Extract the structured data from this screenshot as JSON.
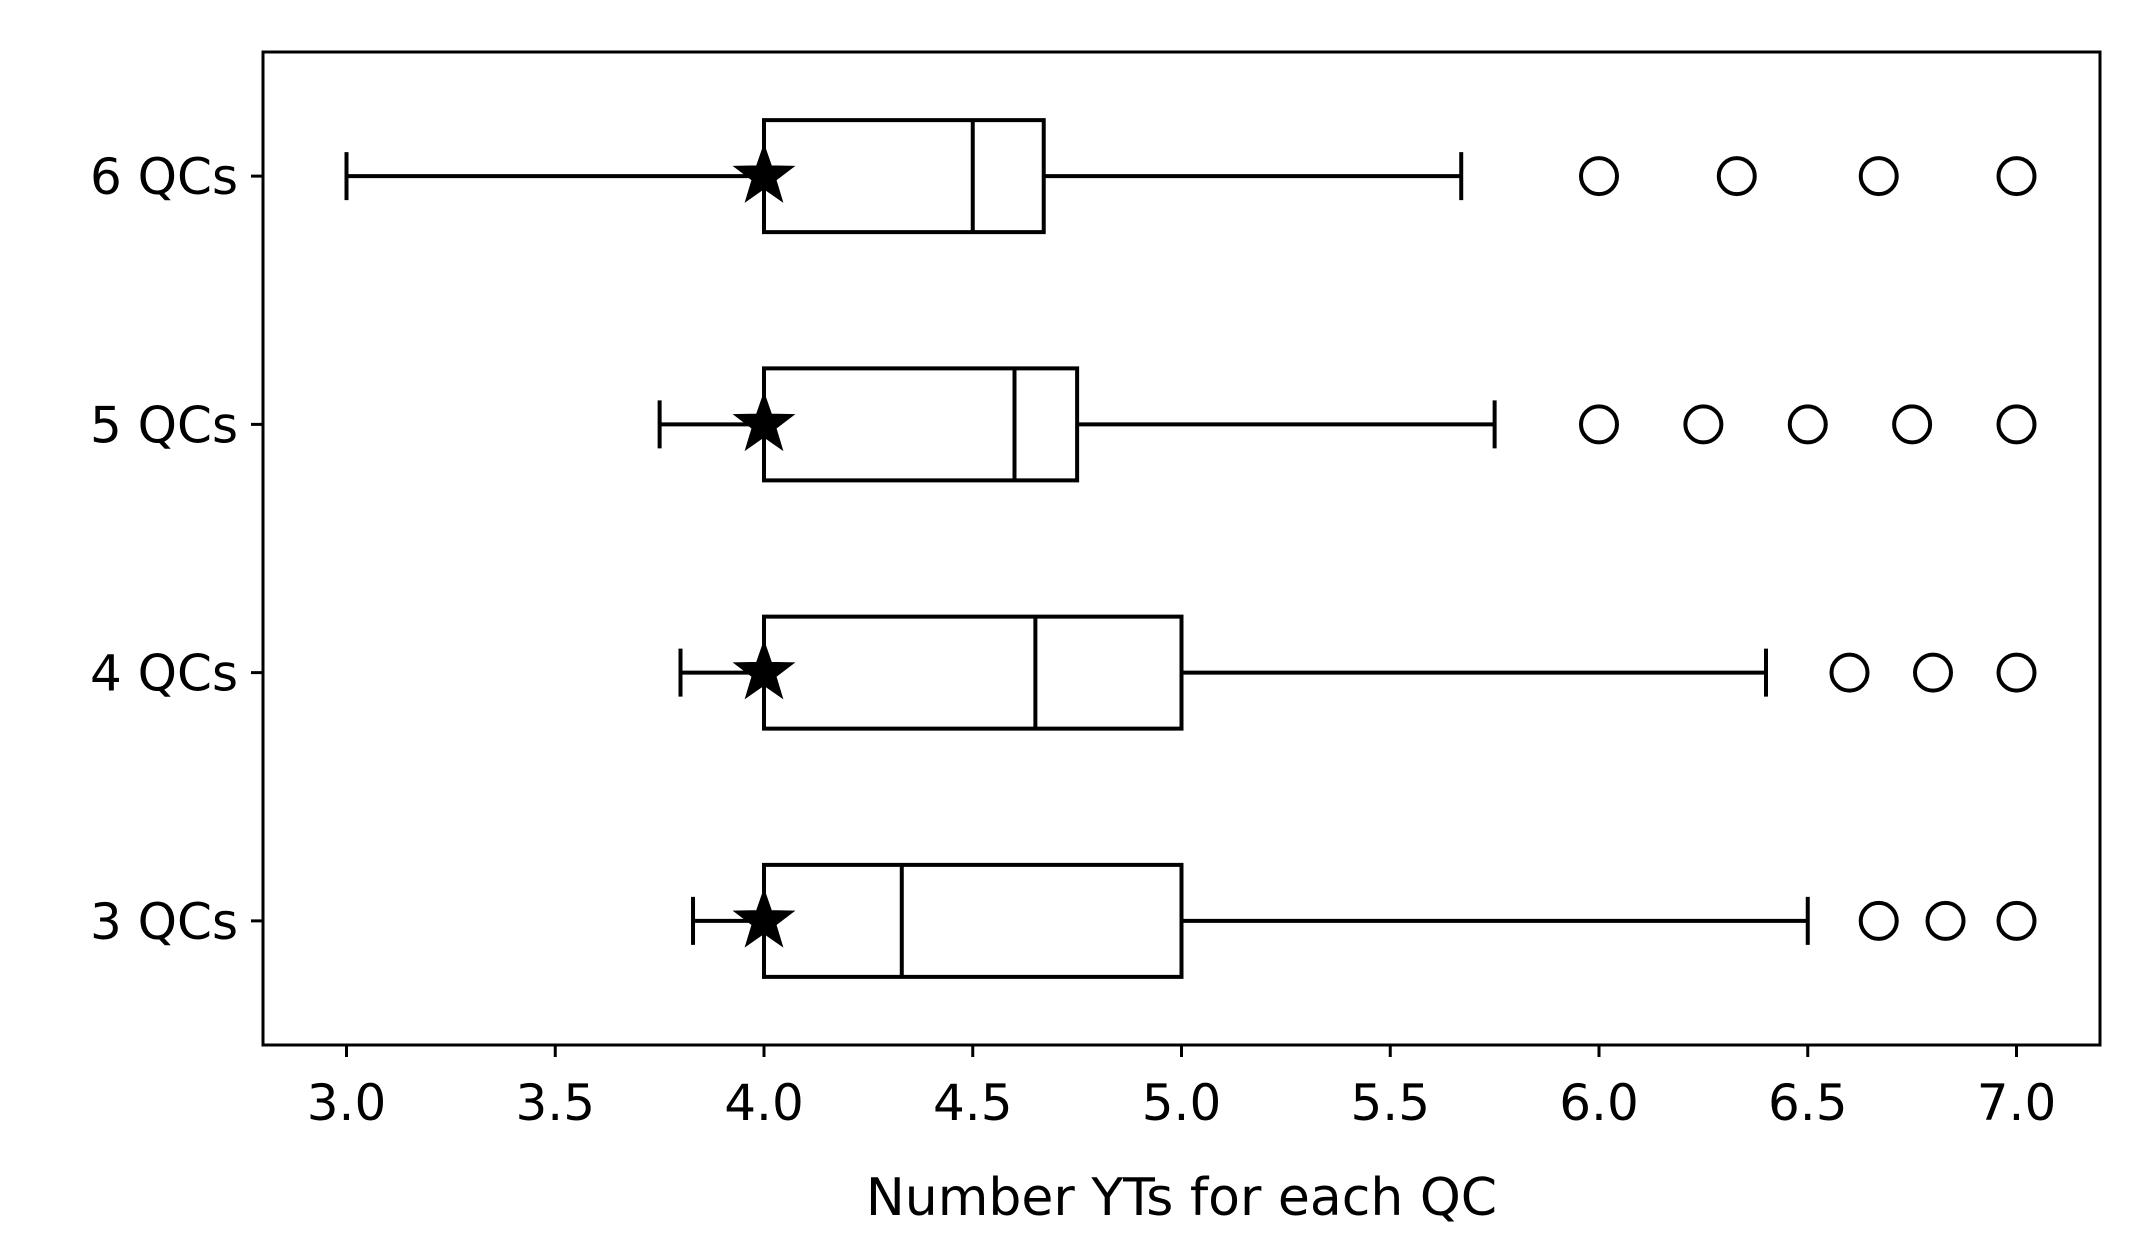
{
  "chart_data": {
    "type": "boxplot",
    "orientation": "horizontal",
    "title": "",
    "xlabel": "Number YTs for each QC",
    "ylabel": "",
    "xlim": [
      2.8,
      7.2
    ],
    "xticks": [
      3.0,
      3.5,
      4.0,
      4.5,
      5.0,
      5.5,
      6.0,
      6.5,
      7.0
    ],
    "xtick_labels": [
      "3.0",
      "3.5",
      "4.0",
      "4.5",
      "5.0",
      "5.5",
      "6.0",
      "6.5",
      "7.0"
    ],
    "categories": [
      "3 QCs",
      "4 QCs",
      "5 QCs",
      "6 QCs"
    ],
    "grid": false,
    "boxes": [
      {
        "category": "3 QCs",
        "whisker_low": 3.83,
        "q1": 4.0,
        "median": 4.33,
        "q3": 5.0,
        "whisker_high": 6.5,
        "mean": 4.0,
        "outliers": [
          6.67,
          6.83,
          7.0
        ]
      },
      {
        "category": "4 QCs",
        "whisker_low": 3.8,
        "q1": 4.0,
        "median": 4.65,
        "q3": 5.0,
        "whisker_high": 6.4,
        "mean": 4.0,
        "outliers": [
          6.6,
          6.8,
          7.0
        ]
      },
      {
        "category": "5 QCs",
        "whisker_low": 3.75,
        "q1": 4.0,
        "median": 4.6,
        "q3": 4.75,
        "whisker_high": 5.75,
        "mean": 4.0,
        "outliers": [
          6.0,
          6.25,
          6.5,
          6.75,
          7.0
        ]
      },
      {
        "category": "6 QCs",
        "whisker_low": 3.0,
        "q1": 4.0,
        "median": 4.5,
        "q3": 4.67,
        "whisker_high": 5.67,
        "mean": 4.0,
        "outliers": [
          6.0,
          6.33,
          6.67,
          7.0
        ]
      }
    ],
    "mean_marker": "star",
    "outlier_marker": "circle"
  }
}
